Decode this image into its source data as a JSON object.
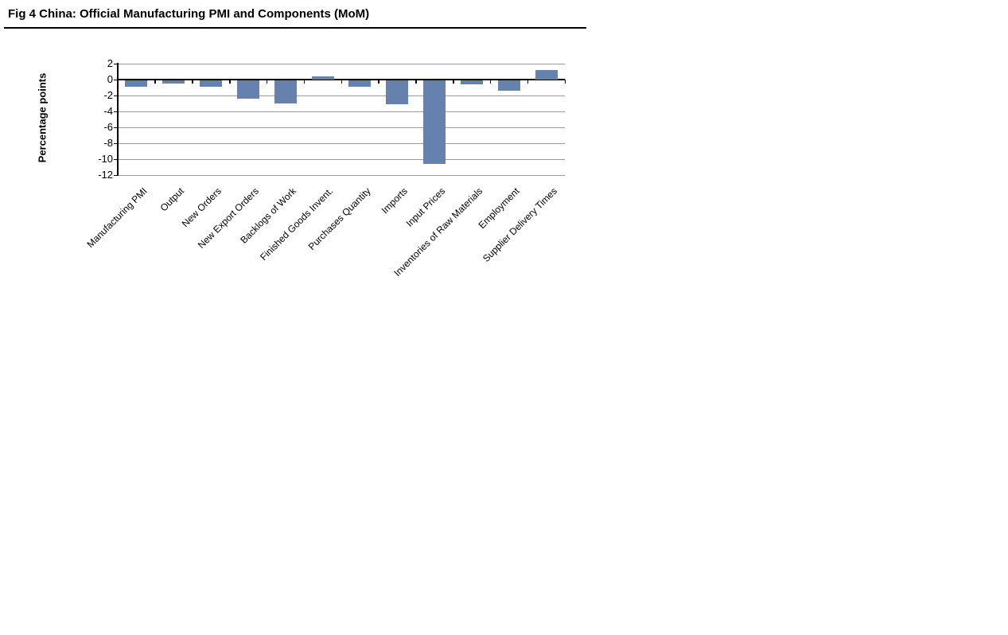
{
  "header": {
    "title": "Fig 4 China: Official Manufacturing PMI and Components (MoM)"
  },
  "chart_data": {
    "type": "bar",
    "title": "Fig 4 China: Official Manufacturing PMI and Components (MoM)",
    "categories": [
      "Manufacturing PMI",
      "Output",
      "New Orders",
      "New Export Orders",
      "Backlogs of Work",
      "Finished Goods Invent.",
      "Purchases Quantity",
      "Imports",
      "Input Prices",
      "Inventories of Raw Materials",
      "Employment",
      "Supplier Delivery Times"
    ],
    "values": [
      -0.8,
      -0.4,
      -0.8,
      -2.3,
      -2.9,
      0.4,
      -0.8,
      -3.0,
      -10.5,
      -0.5,
      -1.3,
      1.2
    ],
    "xlabel": "",
    "ylabel": "Percentage points",
    "ylim": [
      -12,
      2
    ],
    "yticks": [
      2,
      0,
      -2,
      -4,
      -6,
      -8,
      -10,
      -12
    ],
    "grid": true,
    "legend": false,
    "bar_color": "#6781ae",
    "gridline_color": "#999999",
    "axis_color": "#000000"
  }
}
